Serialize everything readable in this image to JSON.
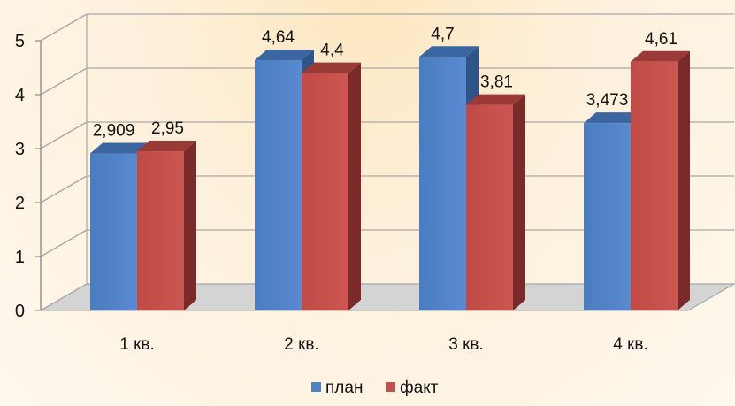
{
  "chart_data": {
    "type": "bar",
    "title": "",
    "xlabel": "",
    "ylabel": "",
    "categories": [
      "1 кв.",
      "2 кв.",
      "3 кв.",
      "4 кв."
    ],
    "series": [
      {
        "name": "план",
        "values": [
          2.909,
          4.64,
          4.7,
          3.473
        ],
        "labels": [
          "2,909",
          "4,64",
          "4,7",
          "3,473"
        ],
        "color": "#4f81bd"
      },
      {
        "name": "факт",
        "values": [
          2.95,
          4.4,
          3.81,
          4.61
        ],
        "labels": [
          "2,95",
          "4,4",
          "3,81",
          "4,61"
        ],
        "color": "#c0504d"
      }
    ],
    "y_ticks": [
      "0",
      "1",
      "2",
      "3",
      "4",
      "5"
    ],
    "ylim": [
      0,
      5
    ],
    "grid": true,
    "legend_position": "bottom",
    "style": "3d-clustered-column"
  }
}
